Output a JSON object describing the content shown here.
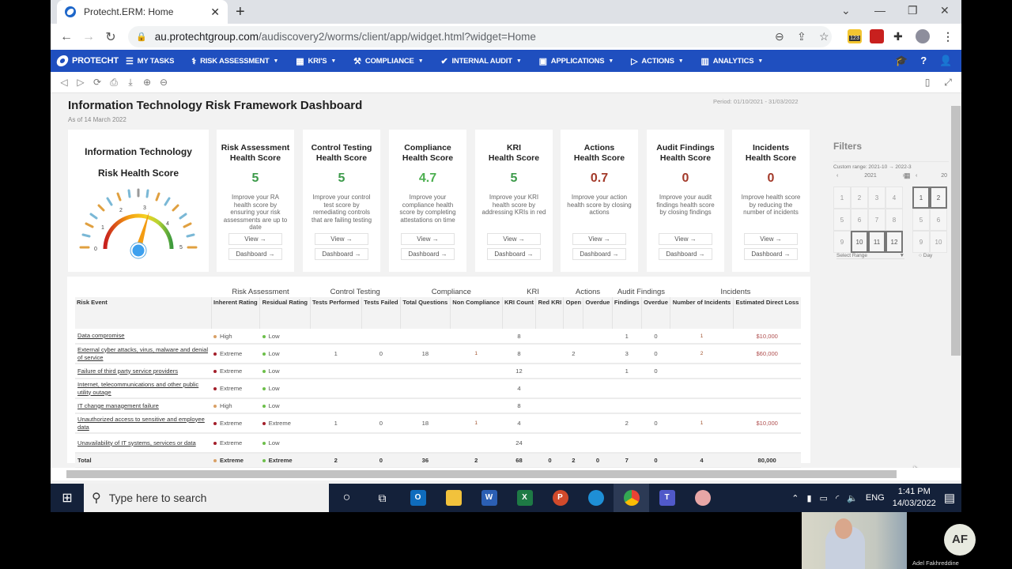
{
  "browser": {
    "tab_title": "Protecht.ERM: Home",
    "url_host": "au.protechtgroup.com",
    "url_path": "/audiscovery2/worms/client/app/widget.html?widget=Home",
    "extension_badge": "123"
  },
  "app_nav": {
    "brand": "PROTECHT",
    "items": [
      {
        "label": "MY TASKS",
        "icon": "list-icon",
        "caret": false
      },
      {
        "label": "RISK ASSESSMENT",
        "icon": "stethoscope-icon",
        "caret": true
      },
      {
        "label": "KRI'S",
        "icon": "gauge-icon",
        "caret": true
      },
      {
        "label": "COMPLIANCE",
        "icon": "gavel-icon",
        "caret": true
      },
      {
        "label": "INTERNAL AUDIT",
        "icon": "check-icon",
        "caret": true
      },
      {
        "label": "APPLICATIONS",
        "icon": "briefcase-icon",
        "caret": true
      },
      {
        "label": "ACTIONS",
        "icon": "flag-icon",
        "caret": true
      },
      {
        "label": "ANALYTICS",
        "icon": "chart-icon",
        "caret": true
      }
    ]
  },
  "dashboard": {
    "title": "Information Technology Risk Framework Dashboard",
    "as_of": "As of 14 March 2022",
    "period": "Period: 01/10/2021 - 31/03/2022",
    "gauge": {
      "title_line1": "Information Technology",
      "title_line2": "Risk Health Score",
      "ticks": [
        "0",
        "1",
        "2",
        "3",
        "4",
        "5"
      ],
      "value": 3.1
    },
    "view_label": "View →",
    "dashboard_label": "Dashboard →",
    "cards": [
      {
        "title1": "Risk Assessment",
        "title2": "Health Score",
        "score": "5",
        "color": "#3c9a4a",
        "desc": "Improve your RA health score by ensuring your risk assessments are up to date"
      },
      {
        "title1": "Control Testing",
        "title2": "Health Score",
        "score": "5",
        "color": "#3c9a4a",
        "desc": "Improve your control test score by remediating controls that are failing testing"
      },
      {
        "title1": "Compliance",
        "title2": "Health Score",
        "score": "4.7",
        "color": "#4caf50",
        "desc": "Improve your compliance health score by completing attestations on time"
      },
      {
        "title1": "KRI",
        "title2": "Health Score",
        "score": "5",
        "color": "#3c9a4a",
        "desc": "Improve your KRI health score by addressing KRIs in red"
      },
      {
        "title1": "Actions",
        "title2": "Health Score",
        "score": "0.7",
        "color": "#a33a2a",
        "desc": "Improve your action health score by closing actions"
      },
      {
        "title1": "Audit Findings",
        "title2": "Health Score",
        "score": "0",
        "color": "#a33a2a",
        "desc": "Improve your audit findings health score by closing findings"
      },
      {
        "title1": "Incidents",
        "title2": "Health Score",
        "score": "0",
        "color": "#a33a2a",
        "desc": "Improve health score by reducing the number of incidents"
      }
    ]
  },
  "filters": {
    "title": "Filters",
    "custom_range": "Custom range: 2021-10 → 2022-3",
    "left_year": "2021",
    "right_year": "20",
    "left_months": [
      "1",
      "2",
      "3",
      "4",
      "5",
      "6",
      "7",
      "8",
      "9",
      "10",
      "11",
      "12"
    ],
    "left_selected": [
      "10",
      "11",
      "12"
    ],
    "right_months": [
      "1",
      "2",
      "5",
      "6",
      "9",
      "10"
    ],
    "right_selected": [
      "1",
      "2"
    ],
    "select_range": "Select Range",
    "day_label": "Day"
  },
  "table": {
    "groups": [
      "Risk Assessment",
      "Control Testing",
      "Compliance",
      "KRI",
      "Actions",
      "Audit Findings",
      "Incidents"
    ],
    "columns": [
      "Risk Event",
      "Inherent Rating",
      "Residual Rating",
      "Tests Performed",
      "Tests Failed",
      "Total Questions",
      "Non Compliance",
      "KRI Count",
      "Red KRI",
      "Open",
      "Overdue",
      "Findings",
      "Overdue",
      "Number of Incidents",
      "Estimated Direct Loss"
    ],
    "rows": [
      {
        "event": "Data compromise",
        "inh": "High",
        "res": "Low",
        "tp": "",
        "tf": "",
        "tq": "",
        "nc": "",
        "kc": "8",
        "rk": "",
        "op": "",
        "od": "",
        "fi": "1",
        "fo": "0",
        "ni": "1",
        "loss": "$10,000"
      },
      {
        "event": "External cyber attacks, virus, malware and denial of service",
        "inh": "Extreme",
        "res": "Low",
        "tp": "1",
        "tf": "0",
        "tq": "18",
        "nc": "1",
        "kc": "8",
        "rk": "",
        "op": "2",
        "od": "",
        "fi": "3",
        "fo": "0",
        "ni": "2",
        "loss": "$60,000"
      },
      {
        "event": "Failure of third party service providers",
        "inh": "Extreme",
        "res": "Low",
        "tp": "",
        "tf": "",
        "tq": "",
        "nc": "",
        "kc": "12",
        "rk": "",
        "op": "",
        "od": "",
        "fi": "1",
        "fo": "0",
        "ni": "",
        "loss": ""
      },
      {
        "event": "Internet, telecommunications and other public utility outage",
        "inh": "Extreme",
        "res": "Low",
        "tp": "",
        "tf": "",
        "tq": "",
        "nc": "",
        "kc": "4",
        "rk": "",
        "op": "",
        "od": "",
        "fi": "",
        "fo": "",
        "ni": "",
        "loss": ""
      },
      {
        "event": "IT change management failure",
        "inh": "High",
        "res": "Low",
        "tp": "",
        "tf": "",
        "tq": "",
        "nc": "",
        "kc": "8",
        "rk": "",
        "op": "",
        "od": "",
        "fi": "",
        "fo": "",
        "ni": "",
        "loss": ""
      },
      {
        "event": "Unauthorized access to sensitive and employee data",
        "inh": "Extreme",
        "res": "Extreme",
        "tp": "1",
        "tf": "0",
        "tq": "18",
        "nc": "1",
        "kc": "4",
        "rk": "",
        "op": "",
        "od": "",
        "fi": "2",
        "fo": "0",
        "ni": "1",
        "loss": "$10,000"
      },
      {
        "event": "Unavailability of IT systems, services or data",
        "inh": "Extreme",
        "res": "Low",
        "tp": "",
        "tf": "",
        "tq": "",
        "nc": "",
        "kc": "24",
        "rk": "",
        "op": "",
        "od": "",
        "fi": "",
        "fo": "",
        "ni": "",
        "loss": ""
      }
    ],
    "total": {
      "event": "Total",
      "inh": "Extreme",
      "res": "Extreme",
      "tp": "2",
      "tf": "0",
      "tq": "36",
      "nc": "2",
      "kc": "68",
      "rk": "0",
      "op": "2",
      "od": "0",
      "fi": "7",
      "fo": "0",
      "ni": "4",
      "loss": "80,000"
    },
    "rating_colors": {
      "High": "#d9a066",
      "Extreme": "#a31f2a",
      "Low": "#6cbf4a"
    }
  },
  "taskbar": {
    "search_placeholder": "Type here to search",
    "lang": "ENG",
    "time": "1:41 PM",
    "date": "14/03/2022"
  },
  "call": {
    "initials": "AF",
    "name": "Adel Fakhreddine"
  }
}
